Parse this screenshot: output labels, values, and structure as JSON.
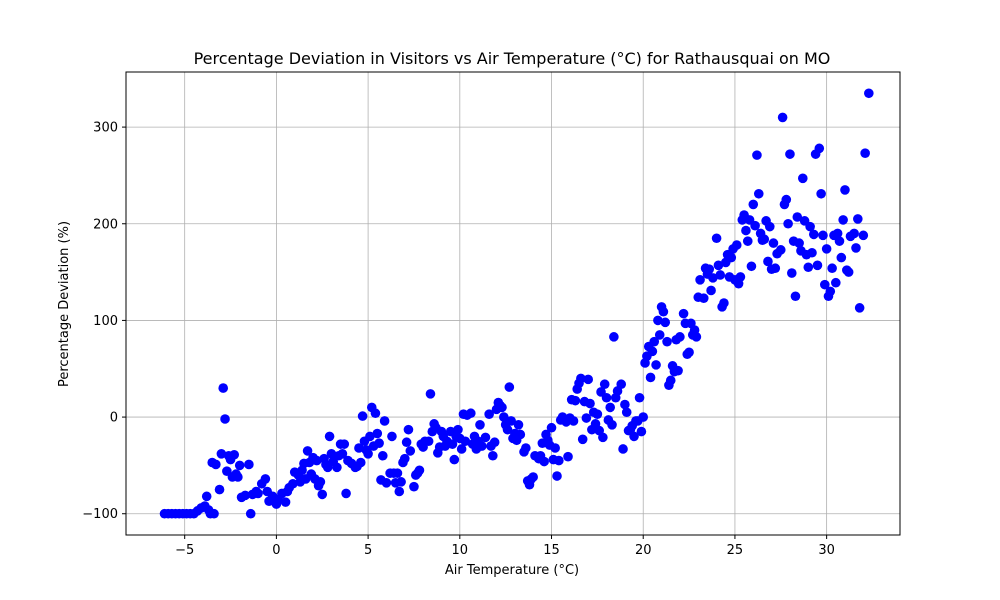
{
  "chart_data": {
    "type": "scatter",
    "title": "Percentage Deviation in Visitors vs Air Temperature (°C) for Rathausquai on MO",
    "xlabel": "Air Temperature (°C)",
    "ylabel": "Percentage Deviation (%)",
    "xlim": [
      -8.2,
      34.0
    ],
    "ylim": [
      -122,
      357
    ],
    "xticks": [
      -5,
      0,
      5,
      10,
      15,
      20,
      25,
      30
    ],
    "yticks": [
      -100,
      0,
      100,
      200,
      300
    ],
    "xtick_labels": [
      "−5",
      "0",
      "5",
      "10",
      "15",
      "20",
      "25",
      "30"
    ],
    "ytick_labels": [
      "−100",
      "0",
      "100",
      "200",
      "300"
    ],
    "grid": true,
    "marker_color": "#0000ff",
    "points": [
      [
        -6.1,
        -100
      ],
      [
        -5.9,
        -100
      ],
      [
        -5.7,
        -100
      ],
      [
        -5.5,
        -100
      ],
      [
        -5.3,
        -100
      ],
      [
        -5.1,
        -100
      ],
      [
        -4.9,
        -100
      ],
      [
        -4.7,
        -100
      ],
      [
        -4.5,
        -100
      ],
      [
        -4.3,
        -97
      ],
      [
        -4.1,
        -94
      ],
      [
        -3.9,
        -92
      ],
      [
        -3.8,
        -82
      ],
      [
        -3.7,
        -96
      ],
      [
        -3.6,
        -100
      ],
      [
        -3.4,
        -100
      ],
      [
        -3.5,
        -47
      ],
      [
        -3.3,
        -49
      ],
      [
        -3.1,
        -75
      ],
      [
        -3.0,
        -38
      ],
      [
        -2.9,
        30
      ],
      [
        -2.8,
        -2
      ],
      [
        -2.7,
        -56
      ],
      [
        -2.6,
        -40
      ],
      [
        -2.5,
        -44
      ],
      [
        -2.4,
        -62
      ],
      [
        -2.3,
        -39
      ],
      [
        -2.2,
        -59
      ],
      [
        -2.1,
        -62
      ],
      [
        -2.0,
        -50
      ],
      [
        -1.9,
        -83
      ],
      [
        -1.7,
        -81
      ],
      [
        -1.5,
        -49
      ],
      [
        -1.3,
        -80
      ],
      [
        -1.4,
        -100
      ],
      [
        -1.1,
        -77
      ],
      [
        -1.0,
        -79
      ],
      [
        -0.8,
        -69
      ],
      [
        -0.6,
        -64
      ],
      [
        -0.5,
        -77
      ],
      [
        -0.4,
        -87
      ],
      [
        -0.2,
        -82
      ],
      [
        0.0,
        -90
      ],
      [
        0.1,
        -85
      ],
      [
        0.3,
        -79
      ],
      [
        0.5,
        -88
      ],
      [
        0.6,
        -77
      ],
      [
        0.7,
        -73
      ],
      [
        0.9,
        -69
      ],
      [
        1.0,
        -57
      ],
      [
        1.2,
        -60
      ],
      [
        1.3,
        -67
      ],
      [
        1.4,
        -55
      ],
      [
        1.5,
        -48
      ],
      [
        1.6,
        -64
      ],
      [
        1.7,
        -35
      ],
      [
        1.8,
        -47
      ],
      [
        1.9,
        -59
      ],
      [
        2.0,
        -42
      ],
      [
        2.1,
        -64
      ],
      [
        2.2,
        -45
      ],
      [
        2.3,
        -71
      ],
      [
        2.4,
        -67
      ],
      [
        2.5,
        -80
      ],
      [
        2.6,
        -43
      ],
      [
        2.7,
        -49
      ],
      [
        2.8,
        -52
      ],
      [
        2.9,
        -20
      ],
      [
        3.0,
        -38
      ],
      [
        3.1,
        -46
      ],
      [
        3.3,
        -52
      ],
      [
        3.4,
        -40
      ],
      [
        3.5,
        -28
      ],
      [
        3.6,
        -38
      ],
      [
        3.7,
        -28
      ],
      [
        3.8,
        -79
      ],
      [
        3.9,
        -45
      ],
      [
        4.1,
        -48
      ],
      [
        4.3,
        -52
      ],
      [
        4.4,
        -51
      ],
      [
        4.5,
        -32
      ],
      [
        4.6,
        -47
      ],
      [
        4.7,
        1
      ],
      [
        4.8,
        -25
      ],
      [
        4.9,
        -34
      ],
      [
        5.0,
        -38
      ],
      [
        5.1,
        -20
      ],
      [
        5.2,
        10
      ],
      [
        5.3,
        -30
      ],
      [
        5.4,
        4
      ],
      [
        5.5,
        -17
      ],
      [
        5.6,
        -27
      ],
      [
        5.7,
        -65
      ],
      [
        5.8,
        -40
      ],
      [
        5.9,
        -4
      ],
      [
        6.0,
        -68
      ],
      [
        6.2,
        -58
      ],
      [
        6.3,
        -20
      ],
      [
        6.4,
        -58
      ],
      [
        6.5,
        -68
      ],
      [
        6.6,
        -58
      ],
      [
        6.7,
        -77
      ],
      [
        6.8,
        -67
      ],
      [
        6.9,
        -47
      ],
      [
        7.0,
        -43
      ],
      [
        7.1,
        -26
      ],
      [
        7.2,
        -13
      ],
      [
        7.3,
        -35
      ],
      [
        7.5,
        -72
      ],
      [
        7.6,
        -60
      ],
      [
        7.7,
        -58
      ],
      [
        7.8,
        -55
      ],
      [
        7.9,
        -28
      ],
      [
        8.0,
        -31
      ],
      [
        8.1,
        -25
      ],
      [
        8.3,
        -25
      ],
      [
        8.4,
        24
      ],
      [
        8.5,
        -15
      ],
      [
        8.6,
        -7
      ],
      [
        8.7,
        -11
      ],
      [
        8.8,
        -37
      ],
      [
        8.9,
        -31
      ],
      [
        9.0,
        -15
      ],
      [
        9.1,
        -20
      ],
      [
        9.2,
        -30
      ],
      [
        9.3,
        -25
      ],
      [
        9.5,
        -15
      ],
      [
        9.6,
        -28
      ],
      [
        9.7,
        -44
      ],
      [
        9.8,
        -20
      ],
      [
        9.9,
        -13
      ],
      [
        10.0,
        -22
      ],
      [
        10.1,
        -33
      ],
      [
        10.2,
        3
      ],
      [
        10.3,
        -25
      ],
      [
        10.4,
        2
      ],
      [
        10.6,
        4
      ],
      [
        10.7,
        -28
      ],
      [
        10.8,
        -20
      ],
      [
        10.9,
        -33
      ],
      [
        11.0,
        -25
      ],
      [
        11.1,
        -8
      ],
      [
        11.2,
        -30
      ],
      [
        11.4,
        -21
      ],
      [
        11.6,
        3
      ],
      [
        11.7,
        -30
      ],
      [
        11.8,
        -40
      ],
      [
        11.9,
        -26
      ],
      [
        12.0,
        8
      ],
      [
        12.1,
        15
      ],
      [
        12.2,
        12
      ],
      [
        12.3,
        10
      ],
      [
        12.4,
        0
      ],
      [
        12.5,
        -8
      ],
      [
        12.6,
        -13
      ],
      [
        12.7,
        31
      ],
      [
        12.8,
        -4
      ],
      [
        12.9,
        -22
      ],
      [
        13.0,
        -17
      ],
      [
        13.1,
        -24
      ],
      [
        13.2,
        -8
      ],
      [
        13.3,
        -18
      ],
      [
        13.5,
        -36
      ],
      [
        13.6,
        -32
      ],
      [
        13.7,
        -66
      ],
      [
        13.8,
        -70
      ],
      [
        13.9,
        -64
      ],
      [
        14.0,
        -62
      ],
      [
        14.1,
        -40
      ],
      [
        14.3,
        -43
      ],
      [
        14.4,
        -40
      ],
      [
        14.5,
        -27
      ],
      [
        14.6,
        -46
      ],
      [
        14.7,
        -18
      ],
      [
        14.8,
        -24
      ],
      [
        14.9,
        -29
      ],
      [
        15.0,
        -11
      ],
      [
        15.1,
        -44
      ],
      [
        15.2,
        -32
      ],
      [
        15.3,
        -61
      ],
      [
        15.4,
        -45
      ],
      [
        15.5,
        -3
      ],
      [
        15.6,
        0
      ],
      [
        15.8,
        -5
      ],
      [
        15.9,
        -41
      ],
      [
        16.0,
        -1
      ],
      [
        16.1,
        18
      ],
      [
        16.2,
        -4
      ],
      [
        16.3,
        17
      ],
      [
        16.4,
        29
      ],
      [
        16.5,
        35
      ],
      [
        16.6,
        40
      ],
      [
        16.7,
        -23
      ],
      [
        16.8,
        16
      ],
      [
        16.9,
        -1
      ],
      [
        17.0,
        39
      ],
      [
        17.1,
        14
      ],
      [
        17.2,
        -13
      ],
      [
        17.3,
        5
      ],
      [
        17.4,
        -7
      ],
      [
        17.5,
        3
      ],
      [
        17.6,
        -14
      ],
      [
        17.7,
        26
      ],
      [
        17.8,
        -21
      ],
      [
        17.9,
        34
      ],
      [
        18.0,
        20
      ],
      [
        18.1,
        -3
      ],
      [
        18.2,
        10
      ],
      [
        18.3,
        -8
      ],
      [
        18.4,
        83
      ],
      [
        18.5,
        20
      ],
      [
        18.6,
        27
      ],
      [
        18.8,
        34
      ],
      [
        18.9,
        -33
      ],
      [
        19.0,
        13
      ],
      [
        19.1,
        5
      ],
      [
        19.2,
        -14
      ],
      [
        19.3,
        -13
      ],
      [
        19.4,
        -9
      ],
      [
        19.5,
        -20
      ],
      [
        19.6,
        -4
      ],
      [
        19.7,
        -4
      ],
      [
        19.8,
        20
      ],
      [
        19.9,
        -15
      ],
      [
        20.0,
        0
      ],
      [
        20.1,
        56
      ],
      [
        20.2,
        63
      ],
      [
        20.3,
        73
      ],
      [
        20.4,
        41
      ],
      [
        20.5,
        68
      ],
      [
        20.6,
        78
      ],
      [
        20.7,
        54
      ],
      [
        20.8,
        100
      ],
      [
        20.9,
        85
      ],
      [
        21.0,
        114
      ],
      [
        21.1,
        109
      ],
      [
        21.2,
        98
      ],
      [
        21.3,
        78
      ],
      [
        21.4,
        33
      ],
      [
        21.5,
        38
      ],
      [
        21.6,
        53
      ],
      [
        21.7,
        47
      ],
      [
        21.8,
        80
      ],
      [
        21.9,
        48
      ],
      [
        22.0,
        83
      ],
      [
        22.2,
        107
      ],
      [
        22.3,
        97
      ],
      [
        22.4,
        65
      ],
      [
        22.5,
        67
      ],
      [
        22.6,
        97
      ],
      [
        22.7,
        85
      ],
      [
        22.8,
        90
      ],
      [
        22.9,
        83
      ],
      [
        23.0,
        124
      ],
      [
        23.1,
        142
      ],
      [
        23.3,
        123
      ],
      [
        23.4,
        154
      ],
      [
        23.5,
        148
      ],
      [
        23.6,
        153
      ],
      [
        23.7,
        131
      ],
      [
        23.8,
        144
      ],
      [
        24.0,
        185
      ],
      [
        24.1,
        157
      ],
      [
        24.2,
        147
      ],
      [
        24.3,
        114
      ],
      [
        24.4,
        118
      ],
      [
        24.5,
        160
      ],
      [
        24.6,
        168
      ],
      [
        24.7,
        145
      ],
      [
        24.8,
        165
      ],
      [
        24.9,
        174
      ],
      [
        25.0,
        142
      ],
      [
        25.1,
        178
      ],
      [
        25.2,
        138
      ],
      [
        25.3,
        145
      ],
      [
        25.4,
        204
      ],
      [
        25.5,
        209
      ],
      [
        25.6,
        193
      ],
      [
        25.7,
        182
      ],
      [
        25.8,
        204
      ],
      [
        25.9,
        156
      ],
      [
        26.0,
        220
      ],
      [
        26.1,
        198
      ],
      [
        26.2,
        271
      ],
      [
        26.3,
        231
      ],
      [
        26.4,
        190
      ],
      [
        26.5,
        183
      ],
      [
        26.6,
        184
      ],
      [
        26.7,
        203
      ],
      [
        26.8,
        161
      ],
      [
        26.9,
        197
      ],
      [
        27.0,
        153
      ],
      [
        27.1,
        180
      ],
      [
        27.2,
        154
      ],
      [
        27.3,
        169
      ],
      [
        27.5,
        173
      ],
      [
        27.6,
        310
      ],
      [
        27.7,
        220
      ],
      [
        27.8,
        225
      ],
      [
        27.9,
        200
      ],
      [
        28.0,
        272
      ],
      [
        28.1,
        149
      ],
      [
        28.2,
        182
      ],
      [
        28.3,
        125
      ],
      [
        28.4,
        207
      ],
      [
        28.5,
        180
      ],
      [
        28.6,
        172
      ],
      [
        28.7,
        247
      ],
      [
        28.8,
        203
      ],
      [
        28.9,
        168
      ],
      [
        29.0,
        155
      ],
      [
        29.1,
        197
      ],
      [
        29.2,
        170
      ],
      [
        29.3,
        189
      ],
      [
        29.4,
        272
      ],
      [
        29.5,
        157
      ],
      [
        29.6,
        278
      ],
      [
        29.7,
        231
      ],
      [
        29.8,
        188
      ],
      [
        29.9,
        137
      ],
      [
        30.0,
        174
      ],
      [
        30.1,
        125
      ],
      [
        30.2,
        130
      ],
      [
        30.3,
        154
      ],
      [
        30.4,
        188
      ],
      [
        30.5,
        139
      ],
      [
        30.6,
        190
      ],
      [
        30.7,
        182
      ],
      [
        30.8,
        165
      ],
      [
        30.9,
        204
      ],
      [
        31.0,
        235
      ],
      [
        31.1,
        152
      ],
      [
        31.2,
        150
      ],
      [
        31.3,
        187
      ],
      [
        31.5,
        190
      ],
      [
        31.6,
        175
      ],
      [
        31.7,
        205
      ],
      [
        31.8,
        113
      ],
      [
        32.0,
        188
      ],
      [
        32.1,
        273
      ],
      [
        32.3,
        335
      ]
    ]
  }
}
